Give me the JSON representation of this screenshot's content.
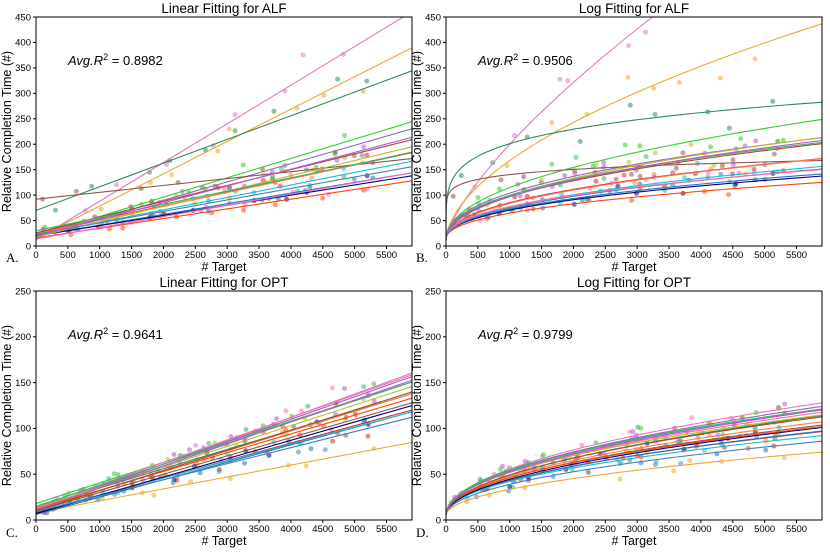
{
  "palette": [
    "#e377c2",
    "#f0a830",
    "#2e8b57",
    "#32cd32",
    "#9467bd",
    "#8c564b",
    "#d62728",
    "#1f77b4",
    "#17becf",
    "#ff7f50",
    "#000080",
    "#ff4500",
    "#bcbd22",
    "#4682b4",
    "#ff69b4",
    "#a0522d",
    "#3cb371",
    "#ba55d3"
  ],
  "chart_data": [
    {
      "id": "A",
      "type": "scatter",
      "fit": "linear",
      "panel_label": "A.",
      "title": "Linear Fitting for ALF",
      "r2_prefix": "Avg.R",
      "r2_eq": " = 0.8982",
      "xlabel": "# Target",
      "ylabel": "Relative Completion Time (#)",
      "xlim": [
        0,
        5900
      ],
      "ylim": [
        0,
        450
      ],
      "xticks": [
        0,
        500,
        1000,
        1500,
        2000,
        2500,
        3000,
        3500,
        4000,
        4500,
        5000,
        5500
      ],
      "yticks": [
        0,
        50,
        100,
        150,
        200,
        250,
        300,
        350,
        400,
        450
      ],
      "series": [
        {
          "a": 12,
          "b": 0.076
        },
        {
          "a": 15,
          "b": 0.0635
        },
        {
          "a": 70,
          "b": 0.0465
        },
        {
          "a": 20,
          "b": 0.038
        },
        {
          "a": 18,
          "b": 0.036
        },
        {
          "a": 92,
          "b": 0.0135
        },
        {
          "a": 25,
          "b": 0.027
        },
        {
          "a": 20,
          "b": 0.021
        },
        {
          "a": 22,
          "b": 0.0245
        },
        {
          "a": 24,
          "b": 0.027
        },
        {
          "a": 20,
          "b": 0.02
        },
        {
          "a": 16,
          "b": 0.019
        },
        {
          "a": 18,
          "b": 0.03
        },
        {
          "a": 23,
          "b": 0.0225
        },
        {
          "a": 14,
          "b": 0.022
        },
        {
          "a": 26,
          "b": 0.031
        },
        {
          "a": 30,
          "b": 0.026
        },
        {
          "a": 19,
          "b": 0.033
        }
      ]
    },
    {
      "id": "B",
      "type": "scatter",
      "fit": "log",
      "panel_label": "B.",
      "title": "Log Fitting for ALF",
      "r2_prefix": "Avg.R",
      "r2_eq": " = 0.9506",
      "xlabel": "# Target",
      "ylabel": "Relative Completion Time (#)",
      "xlim": [
        0,
        5900
      ],
      "ylim": [
        0,
        450
      ],
      "xticks": [
        0,
        500,
        1000,
        1500,
        2000,
        2500,
        3000,
        3500,
        4000,
        4500,
        5000,
        5500
      ],
      "yticks": [
        0,
        50,
        100,
        150,
        200,
        250,
        300,
        350,
        400,
        450
      ],
      "series": [
        {
          "a": 12,
          "b": 1.3,
          "p": 0.72
        },
        {
          "a": 10,
          "b": 3.3,
          "p": 0.56
        },
        {
          "a": 10,
          "b": 48,
          "p": 0.2
        },
        {
          "a": 12,
          "b": 4.0,
          "p": 0.47
        },
        {
          "a": 12,
          "b": 4.4,
          "p": 0.44
        },
        {
          "a": 12,
          "b": 60,
          "p": 0.11
        },
        {
          "a": 12,
          "b": 3.5,
          "p": 0.44
        },
        {
          "a": 12,
          "b": 3.1,
          "p": 0.43
        },
        {
          "a": 12,
          "b": 2.9,
          "p": 0.45
        },
        {
          "a": 12,
          "b": 3.2,
          "p": 0.45
        },
        {
          "a": 12,
          "b": 3.0,
          "p": 0.43
        },
        {
          "a": 12,
          "b": 2.7,
          "p": 0.43
        },
        {
          "a": 12,
          "b": 3.4,
          "p": 0.47
        },
        {
          "a": 12,
          "b": 2.8,
          "p": 0.45
        },
        {
          "a": 12,
          "b": 3.6,
          "p": 0.42
        },
        {
          "a": 12,
          "b": 3.8,
          "p": 0.45
        },
        {
          "a": 12,
          "b": 4.2,
          "p": 0.44
        },
        {
          "a": 12,
          "b": 3.3,
          "p": 0.47
        }
      ]
    },
    {
      "id": "C",
      "type": "scatter",
      "fit": "linear",
      "panel_label": "C.",
      "title": "Linear Fitting for OPT",
      "r2_prefix": "Avg.R",
      "r2_eq": " = 0.9641",
      "xlabel": "# Target",
      "ylabel": "Relative Completion Time (#)",
      "xlim": [
        0,
        5900
      ],
      "ylim": [
        0,
        250
      ],
      "xticks": [
        0,
        500,
        1000,
        1500,
        2000,
        2500,
        3000,
        3500,
        4000,
        4500,
        5000,
        5500
      ],
      "yticks": [
        0,
        50,
        100,
        150,
        200,
        250
      ],
      "series": [
        {
          "a": 10,
          "b": 0.0255
        },
        {
          "a": 8,
          "b": 0.013
        },
        {
          "a": 14,
          "b": 0.021
        },
        {
          "a": 18,
          "b": 0.0225
        },
        {
          "a": 12,
          "b": 0.0245
        },
        {
          "a": 10,
          "b": 0.02
        },
        {
          "a": 8,
          "b": 0.019
        },
        {
          "a": 6,
          "b": 0.019
        },
        {
          "a": 9,
          "b": 0.0185
        },
        {
          "a": 11,
          "b": 0.0215
        },
        {
          "a": 7,
          "b": 0.02
        },
        {
          "a": 12,
          "b": 0.0205
        },
        {
          "a": 13,
          "b": 0.0225
        },
        {
          "a": 9,
          "b": 0.0175
        },
        {
          "a": 14,
          "b": 0.0245
        },
        {
          "a": 10,
          "b": 0.022
        },
        {
          "a": 15,
          "b": 0.023
        },
        {
          "a": 11,
          "b": 0.024
        }
      ]
    },
    {
      "id": "D",
      "type": "scatter",
      "fit": "log",
      "panel_label": "D.",
      "title": "Log Fitting for OPT",
      "r2_prefix": "Avg.R",
      "r2_eq": " = 0.9799",
      "xlabel": "# Target",
      "ylabel": "Relative Completion Time (#)",
      "xlim": [
        0,
        5900
      ],
      "ylim": [
        0,
        250
      ],
      "xticks": [
        0,
        500,
        1000,
        1500,
        2000,
        2500,
        3000,
        3500,
        4000,
        4500,
        5000,
        5500
      ],
      "yticks": [
        0,
        50,
        100,
        150,
        200,
        250
      ],
      "series": [
        {
          "a": 5,
          "b": 1.6,
          "p": 0.5
        },
        {
          "a": 5,
          "b": 0.9,
          "p": 0.5
        },
        {
          "a": 5,
          "b": 1.3,
          "p": 0.51
        },
        {
          "a": 5,
          "b": 1.8,
          "p": 0.48
        },
        {
          "a": 5,
          "b": 1.55,
          "p": 0.5
        },
        {
          "a": 5,
          "b": 1.4,
          "p": 0.49
        },
        {
          "a": 5,
          "b": 1.3,
          "p": 0.49
        },
        {
          "a": 5,
          "b": 1.2,
          "p": 0.5
        },
        {
          "a": 5,
          "b": 1.35,
          "p": 0.48
        },
        {
          "a": 5,
          "b": 1.45,
          "p": 0.49
        },
        {
          "a": 5,
          "b": 1.25,
          "p": 0.5
        },
        {
          "a": 5,
          "b": 1.5,
          "p": 0.48
        },
        {
          "a": 5,
          "b": 1.7,
          "p": 0.48
        },
        {
          "a": 5,
          "b": 1.15,
          "p": 0.49
        },
        {
          "a": 5,
          "b": 1.6,
          "p": 0.49
        },
        {
          "a": 5,
          "b": 1.4,
          "p": 0.5
        },
        {
          "a": 5,
          "b": 1.65,
          "p": 0.49
        },
        {
          "a": 5,
          "b": 1.5,
          "p": 0.5
        }
      ]
    }
  ]
}
